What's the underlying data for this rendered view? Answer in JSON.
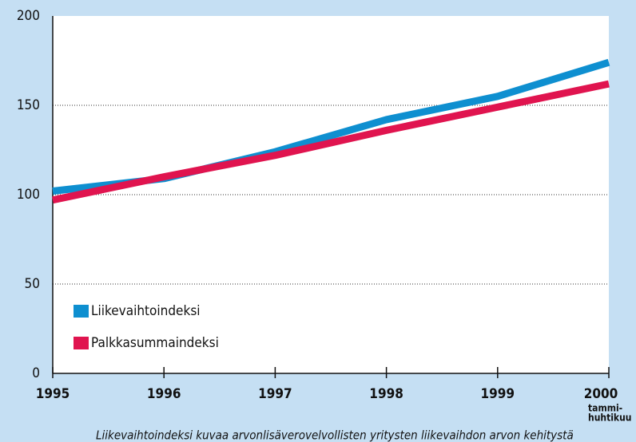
{
  "chart_data": {
    "type": "line",
    "x": [
      1995,
      1996,
      1997,
      1998,
      1999,
      2000
    ],
    "xlim": [
      1995,
      2000
    ],
    "xticks": [
      1995,
      1996,
      1997,
      1998,
      1999,
      2000
    ],
    "x_note": [
      "tammi-",
      "huhtikuu"
    ],
    "ylim": [
      0,
      200
    ],
    "yticks": [
      0,
      50,
      100,
      150,
      200
    ],
    "grid": true,
    "legend": "lower left",
    "series": [
      {
        "name": "Liikevaihtoindeksi",
        "color": "#0e8fd0",
        "values": [
          102,
          109,
          124,
          142,
          155,
          174
        ]
      },
      {
        "name": "Palkkasummaindeksi",
        "color": "#e0144f",
        "values": [
          97,
          110,
          122,
          136,
          149,
          162
        ]
      }
    ],
    "caption": "Liikevaihtoindeksi kuvaa arvonlisäverovelvollisten yritysten liikevaihdon arvon kehitystä"
  }
}
